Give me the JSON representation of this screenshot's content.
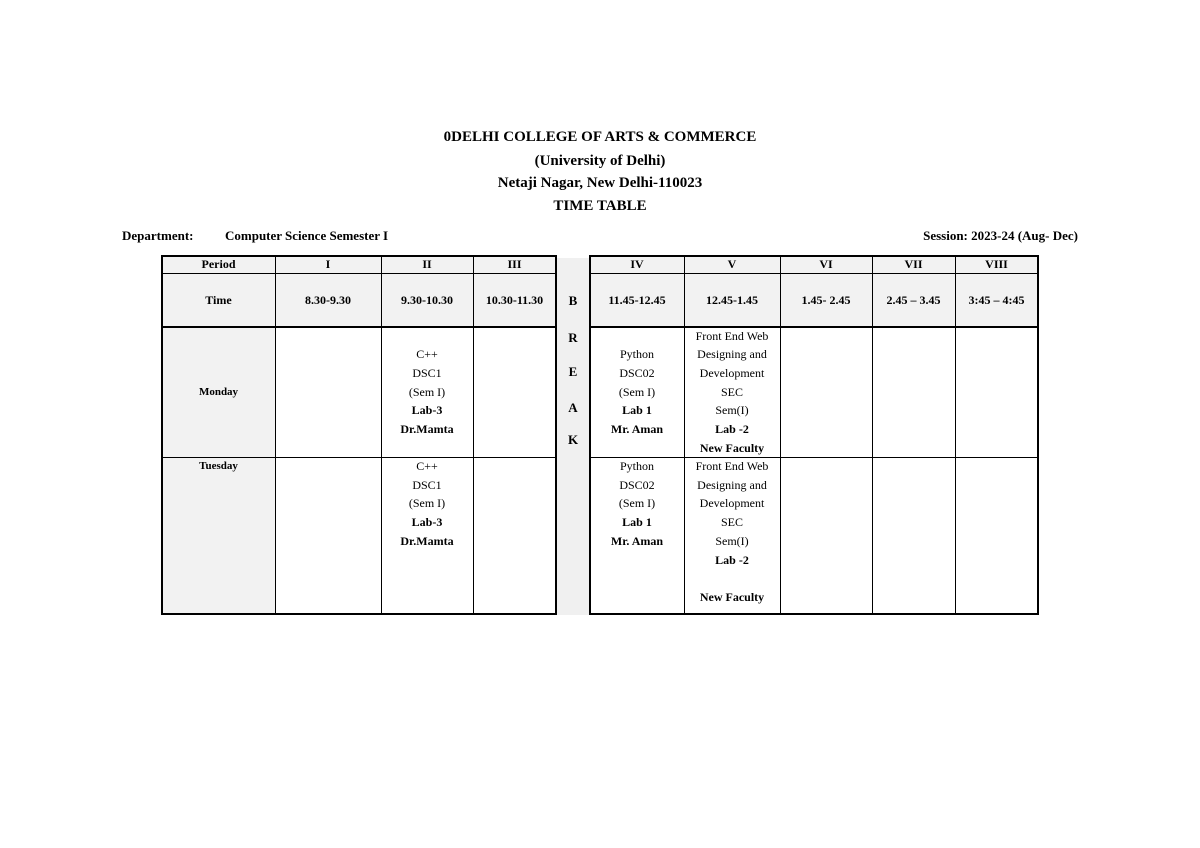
{
  "header": {
    "college": "0DELHI COLLEGE OF ARTS & COMMERCE",
    "university": "(University of Delhi)",
    "address": "Netaji Nagar, New Delhi-110023",
    "title": "TIME TABLE"
  },
  "department_label": "Department:",
  "department_value": "Computer Science Semester I",
  "session": "Session: 2023-24 (Aug- Dec)",
  "break_letters": [
    "B",
    "R",
    "E",
    "A",
    "K"
  ],
  "table": {
    "period_label": "Period",
    "time_label": "Time",
    "periods": [
      "I",
      "II",
      "III",
      "IV",
      "V",
      "VI",
      "VII",
      "VIII"
    ],
    "times": [
      "8.30-9.30",
      "9.30-10.30",
      "10.30-11.30",
      "11.45-12.45",
      "12.45-1.45",
      "1.45- 2.45",
      "2.45 – 3.45",
      "3:45 – 4:45"
    ],
    "rows": [
      {
        "day": "Monday",
        "cells": [
          [],
          [
            {
              "text": "C++"
            },
            {
              "text": "DSC1"
            },
            {
              "text": "(Sem I)"
            },
            {
              "text": "Lab-3",
              "bold": true
            },
            {
              "text": "Dr.Mamta",
              "bold": true
            }
          ],
          [],
          [
            {
              "text": "Python"
            },
            {
              "text": "DSC02"
            },
            {
              "text": "(Sem I)"
            },
            {
              "text": "Lab 1",
              "bold": true
            },
            {
              "text": "Mr. Aman",
              "bold": true
            }
          ],
          [
            {
              "text": "Front End Web"
            },
            {
              "text": "Designing and"
            },
            {
              "text": "Development"
            },
            {
              "text": "SEC"
            },
            {
              "text": "Sem(I)"
            },
            {
              "text": "Lab -2",
              "bold": true
            },
            {
              "text": "New Faculty",
              "bold": true
            }
          ],
          [],
          [],
          []
        ]
      },
      {
        "day": "Tuesday",
        "cells": [
          [],
          [
            {
              "text": "C++"
            },
            {
              "text": "DSC1"
            },
            {
              "text": "(Sem I)"
            },
            {
              "text": "Lab-3",
              "bold": true
            },
            {
              "text": "Dr.Mamta",
              "bold": true
            }
          ],
          [],
          [
            {
              "text": "Python"
            },
            {
              "text": "DSC02"
            },
            {
              "text": "(Sem I)"
            },
            {
              "text": "Lab 1",
              "bold": true
            },
            {
              "text": "Mr. Aman",
              "bold": true
            }
          ],
          [
            {
              "text": "Front End Web"
            },
            {
              "text": "Designing and"
            },
            {
              "text": "Development"
            },
            {
              "text": "SEC"
            },
            {
              "text": "Sem(I)"
            },
            {
              "text": "Lab -2",
              "bold": true
            },
            {
              "text": ""
            },
            {
              "text": "New Faculty",
              "bold": true
            }
          ],
          [],
          [],
          []
        ]
      }
    ]
  }
}
